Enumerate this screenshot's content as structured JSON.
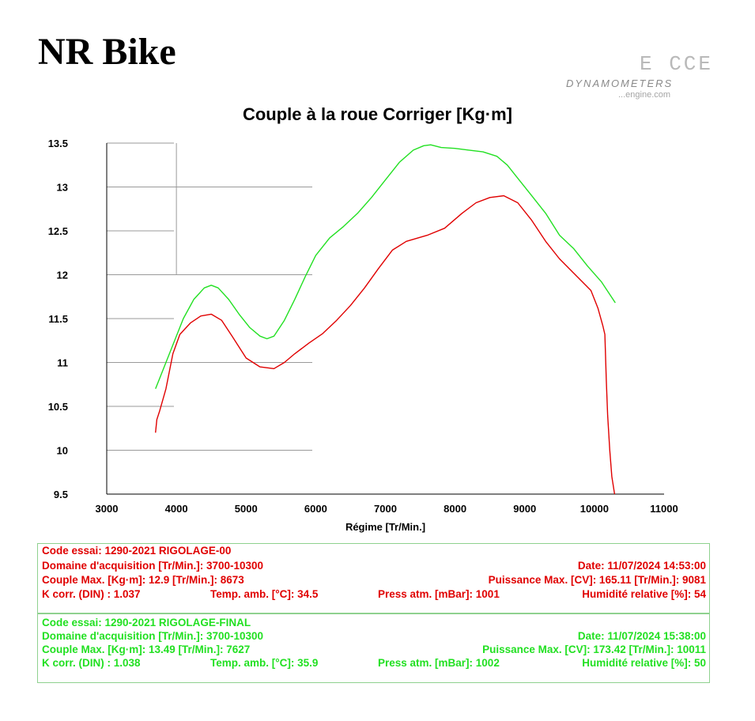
{
  "brand": "NR Bike",
  "logo": {
    "mark": "E  CCE",
    "dyn": "DYNAMOMETERS",
    "site": "...engine.com"
  },
  "chart_data": {
    "type": "line",
    "title": "Couple à la roue Corriger [Kg·m]",
    "xlabel": "Régime [Tr/Min.]",
    "ylabel": "",
    "xlim": [
      3000,
      11000
    ],
    "ylim": [
      9.5,
      13.5
    ],
    "xticks": [
      "3000",
      "4000",
      "5000",
      "6000",
      "7000",
      "8000",
      "9000",
      "10000",
      "11000"
    ],
    "yticks": [
      "9.5",
      "10",
      "10.5",
      "11",
      "11.5",
      "12",
      "12.5",
      "13",
      "13.5"
    ],
    "grid": "partial",
    "series": [
      {
        "color": "#e00000",
        "x": [
          3700,
          3720,
          3760,
          3850,
          3950,
          4050,
          4200,
          4350,
          4500,
          4650,
          4800,
          5000,
          5200,
          5400,
          5550,
          5700,
          5900,
          6100,
          6300,
          6500,
          6700,
          6900,
          7100,
          7300,
          7600,
          7850,
          8100,
          8300,
          8500,
          8700,
          8900,
          9100,
          9300,
          9500,
          9700,
          9850,
          9950,
          10050,
          10120,
          10150,
          10170,
          10190,
          10220,
          10250,
          10290
        ],
        "y": [
          10.2,
          10.35,
          10.45,
          10.7,
          11.1,
          11.32,
          11.45,
          11.53,
          11.55,
          11.48,
          11.3,
          11.05,
          10.95,
          10.93,
          11.0,
          11.1,
          11.22,
          11.33,
          11.48,
          11.65,
          11.85,
          12.07,
          12.28,
          12.38,
          12.45,
          12.53,
          12.7,
          12.82,
          12.88,
          12.9,
          12.82,
          12.62,
          12.38,
          12.18,
          12.02,
          11.9,
          11.82,
          11.62,
          11.42,
          11.32,
          10.8,
          10.4,
          10.0,
          9.7,
          9.5
        ]
      },
      {
        "color": "#22e022",
        "x": [
          3700,
          3750,
          3850,
          3950,
          4100,
          4250,
          4400,
          4500,
          4600,
          4750,
          4900,
          5050,
          5200,
          5300,
          5400,
          5550,
          5700,
          5850,
          6000,
          6200,
          6400,
          6600,
          6800,
          7000,
          7200,
          7400,
          7550,
          7650,
          7800,
          8000,
          8200,
          8400,
          8600,
          8750,
          8900,
          9100,
          9300,
          9500,
          9700,
          9900,
          10100,
          10300
        ],
        "y": [
          10.7,
          10.8,
          11.0,
          11.2,
          11.5,
          11.72,
          11.85,
          11.88,
          11.85,
          11.72,
          11.55,
          11.4,
          11.3,
          11.27,
          11.3,
          11.48,
          11.72,
          11.98,
          12.22,
          12.42,
          12.55,
          12.7,
          12.88,
          13.08,
          13.28,
          13.42,
          13.47,
          13.48,
          13.45,
          13.44,
          13.42,
          13.4,
          13.35,
          13.25,
          13.1,
          12.9,
          12.7,
          12.45,
          12.3,
          12.1,
          11.92,
          11.68
        ]
      }
    ]
  },
  "run1": {
    "code": "Code essai: 1290-2021 RIGOLAGE-00",
    "domain": "Domaine d'acquisition [Tr/Min.]: 3700-10300",
    "date": "Date: 11/07/2024   14:53:00",
    "couple": "Couple Max. [Kg·m]: 12.9   [Tr/Min.]: 8673",
    "power": "Puissance Max. [CV]: 165.11   [Tr/Min.]: 9081",
    "kcorr": "K corr. (DIN) : 1.037",
    "temp": "Temp. amb. [°C]: 34.5",
    "press": "Press atm. [mBar]: 1001",
    "humid": "Humidité relative [%]: 54"
  },
  "run2": {
    "code": "Code essai: 1290-2021 RIGOLAGE-FINAL",
    "domain": "Domaine d'acquisition [Tr/Min.]: 3700-10300",
    "date": "Date: 11/07/2024   15:38:00",
    "couple": "Couple Max. [Kg·m]: 13.49   [Tr/Min.]: 7627",
    "power": "Puissance Max. [CV]: 173.42   [Tr/Min.]: 10011",
    "kcorr": "K corr. (DIN) : 1.038",
    "temp": "Temp. amb. [°C]: 35.9",
    "press": "Press atm. [mBar]: 1002",
    "humid": "Humidité relative [%]: 50"
  }
}
